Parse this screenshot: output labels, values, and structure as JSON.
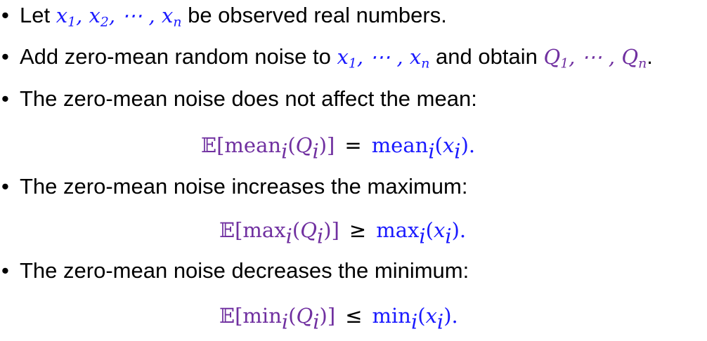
{
  "colors": {
    "variable_blue": "#1a1aff",
    "noisy_purple": "#7030a0",
    "text": "#000000"
  },
  "bullets": [
    {
      "pre": "Let ",
      "math": "x",
      "s1": "1",
      "s2": "2",
      "s3": "n",
      "post": " be observed real numbers."
    },
    {
      "pre": "Add zero-mean random noise to ",
      "x": "x",
      "xs1": "1",
      "xsn": "n",
      "mid": " and obtain ",
      "q": "Q",
      "qs1": "1",
      "qsn": "n",
      "post": "."
    },
    {
      "text": "The zero-mean noise does not affect the mean:"
    },
    {
      "text": "The zero-mean noise increases the maximum:"
    },
    {
      "text": "The zero-mean noise decreases the minimum:"
    }
  ],
  "formulas": [
    {
      "lhs_e": "𝔼[",
      "fn": "mean",
      "idx": "i",
      "q": "Q",
      "close": ")]",
      "op": "=",
      "rhs_fn": "mean",
      "x": "x",
      "end": ")."
    },
    {
      "lhs_e": "𝔼[",
      "fn": "max",
      "idx": "i",
      "q": "Q",
      "close": ")]",
      "op": "≥",
      "rhs_fn": "max",
      "x": "x",
      "end": ")."
    },
    {
      "lhs_e": "𝔼[",
      "fn": "min",
      "idx": "i",
      "q": "Q",
      "close": ")]",
      "op": "≤",
      "rhs_fn": "min",
      "x": "x",
      "end": ")."
    }
  ],
  "symbols": {
    "bullet": "•",
    "comma": ",",
    "ellipsis": "⋯",
    "open_paren": "("
  }
}
